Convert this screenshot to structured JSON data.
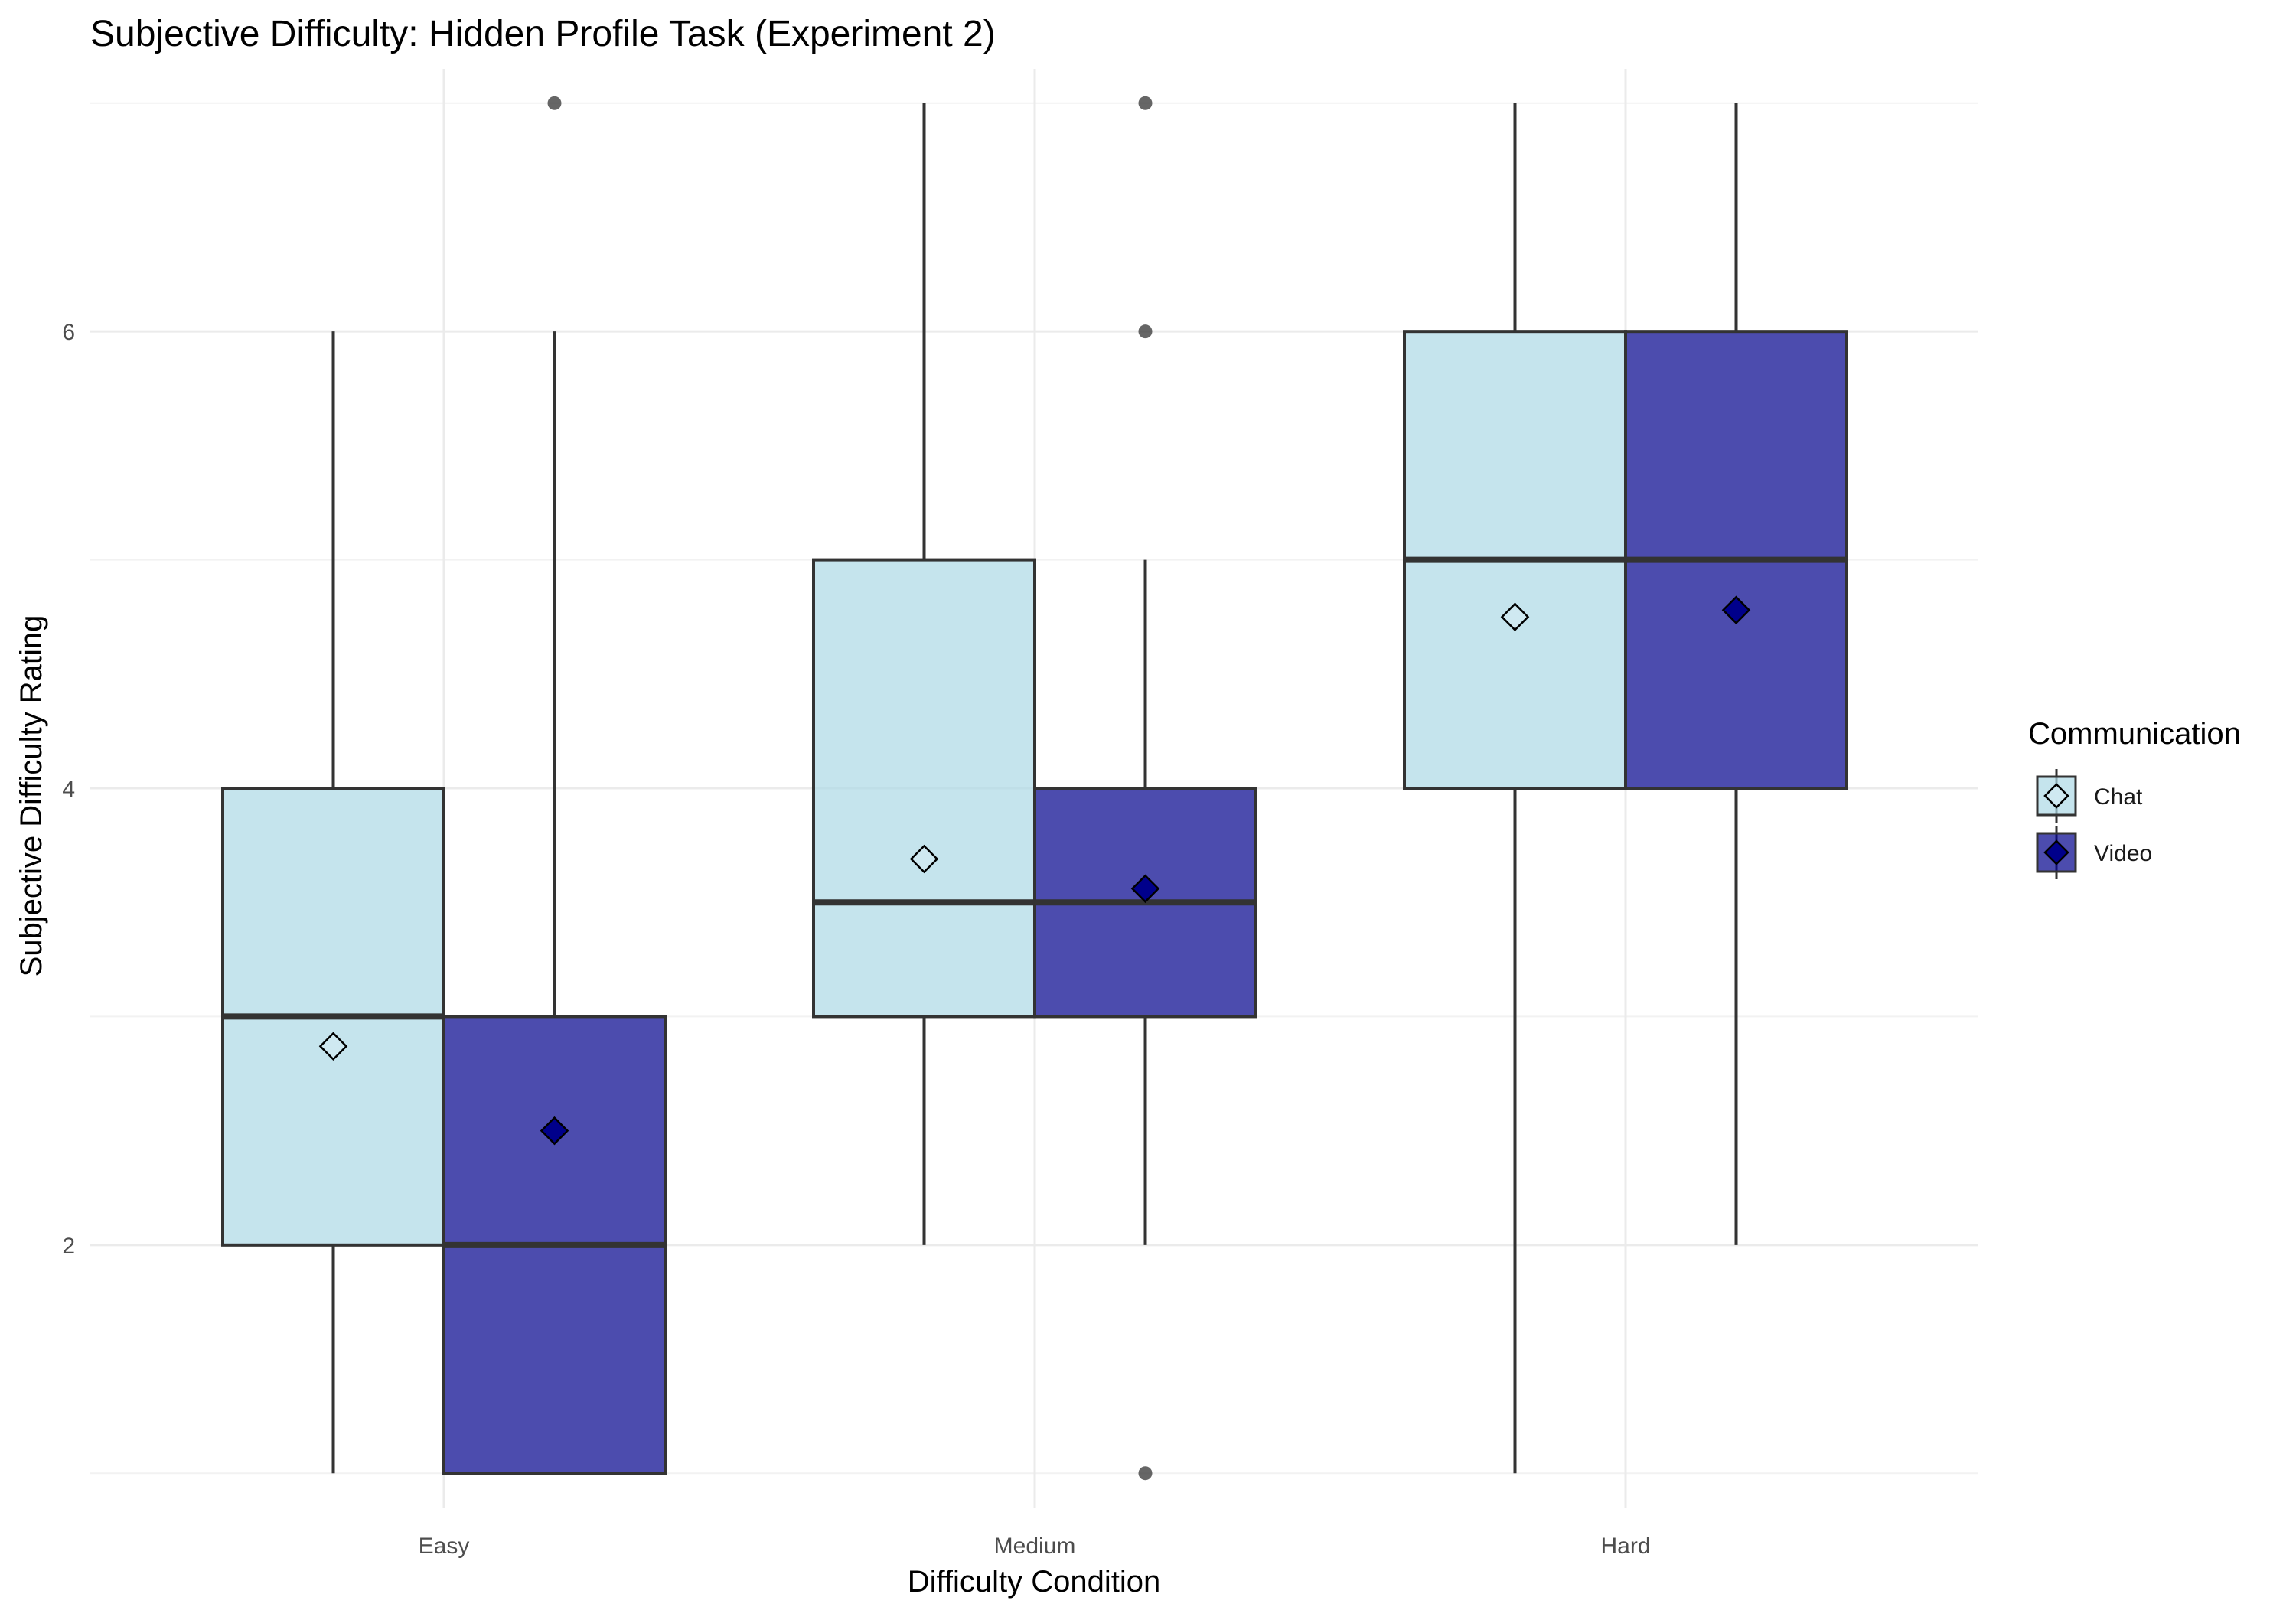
{
  "chart_data": {
    "type": "boxplot",
    "title": "Subjective Difficulty: Hidden Profile Task (Experiment 2)",
    "xlabel": "Difficulty Condition",
    "ylabel": "Subjective Difficulty Rating",
    "categories": [
      "Easy",
      "Medium",
      "Hard"
    ],
    "ylim": [
      0.85,
      7.15
    ],
    "yticks": [
      2,
      4,
      6
    ],
    "grid": true,
    "legend": {
      "title": "Communication",
      "position": "right"
    },
    "series": [
      {
        "name": "Chat",
        "color": "#add8e6",
        "mean_marker": "open-diamond",
        "boxes": [
          {
            "category": "Easy",
            "lower_whisker": 1,
            "q1": 2,
            "median": 3,
            "q3": 4,
            "upper_whisker": 6,
            "mean": 2.87,
            "outliers": []
          },
          {
            "category": "Medium",
            "lower_whisker": 2,
            "q1": 3,
            "median": 3.5,
            "q3": 5,
            "upper_whisker": 7,
            "mean": 3.69,
            "outliers": []
          },
          {
            "category": "Hard",
            "lower_whisker": 1,
            "q1": 4,
            "median": 5,
            "q3": 6,
            "upper_whisker": 7,
            "mean": 4.75,
            "outliers": []
          }
        ]
      },
      {
        "name": "Video",
        "color": "#00008b",
        "mean_marker": "filled-diamond",
        "boxes": [
          {
            "category": "Easy",
            "lower_whisker": 1,
            "q1": 1,
            "median": 2,
            "q3": 3,
            "upper_whisker": 6,
            "mean": 2.5,
            "outliers": [
              7
            ]
          },
          {
            "category": "Medium",
            "lower_whisker": 2,
            "q1": 3,
            "median": 3.5,
            "q3": 4,
            "upper_whisker": 5,
            "mean": 3.56,
            "outliers": [
              1,
              6,
              7
            ]
          },
          {
            "category": "Hard",
            "lower_whisker": 2,
            "q1": 4,
            "median": 5,
            "q3": 6,
            "upper_whisker": 7,
            "mean": 4.78,
            "outliers": []
          }
        ]
      }
    ]
  }
}
